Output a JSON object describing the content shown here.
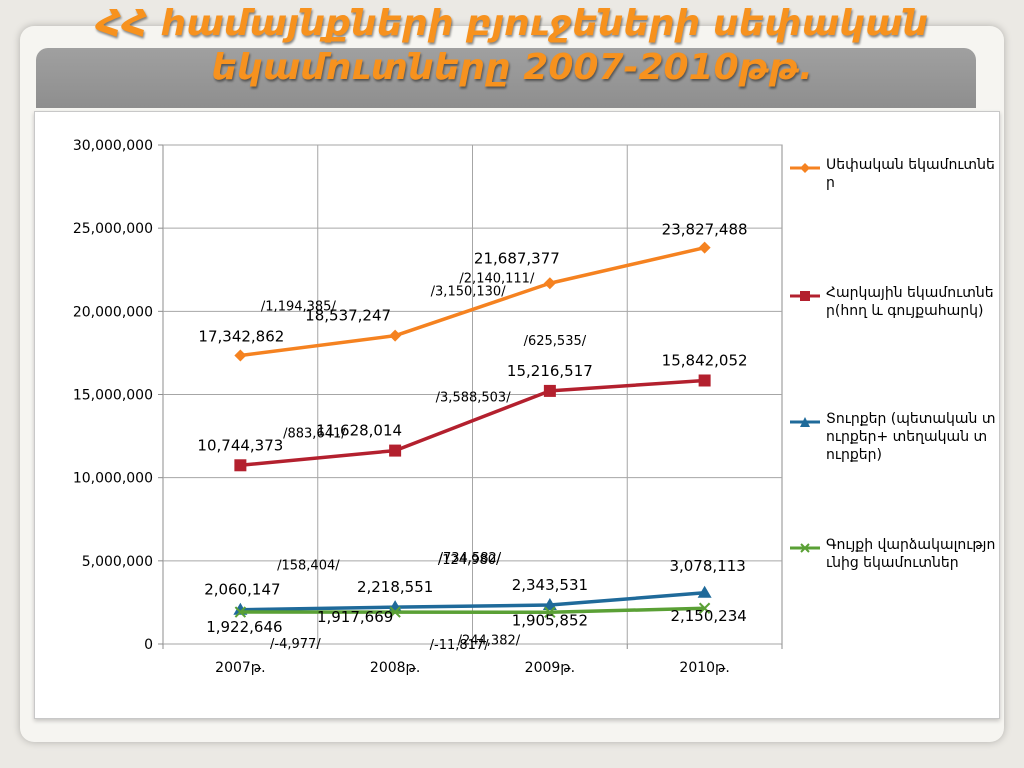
{
  "slide": {
    "title_line1": "ՀՀ համայնքների բյուջեների սեփական",
    "title_line2": "եկամուտները 2007-2010թթ."
  },
  "colors": {
    "title": "#f7921e",
    "own_revenues": "#f58220",
    "land_property": "#b3202e",
    "fees": "#1f6a9a",
    "property_lease": "#5aa035"
  },
  "chart_data": {
    "type": "line",
    "categories": [
      "2007թ.",
      "2008թ.",
      "2009թ.",
      "2010թ."
    ],
    "ylim": [
      0,
      30000000
    ],
    "yticks": [
      0,
      5000000,
      10000000,
      15000000,
      20000000,
      25000000,
      30000000
    ],
    "ytick_labels": [
      "0",
      "5,000,000",
      "10,000,000",
      "15,000,000",
      "20,000,000",
      "25,000,000",
      "30,000,000"
    ],
    "grid": true,
    "legend_position": "right",
    "series": [
      {
        "name": "Սեփական եկամուտներ",
        "marker": "diamond",
        "values": [
          17342862,
          18537247,
          21687377,
          23827488
        ],
        "labels": [
          "17,342,862",
          "18,537,247",
          "21,687,377",
          "23,827,488"
        ],
        "changes": [
          "/1,194,385/",
          "/3,150,130/",
          "/2,140,111/"
        ]
      },
      {
        "name": "Հարկային եկամուտներ(հող և գույքահարկ)",
        "marker": "square",
        "values": [
          10744373,
          11628014,
          15216517,
          15842052
        ],
        "labels": [
          "10,744,373",
          "11,628,014",
          "15,216,517",
          "15,842,052"
        ],
        "changes": [
          "/883,641/",
          "/3,588,503/",
          "/625,535/"
        ]
      },
      {
        "name": "Տուրքեր (պետական տուրքեր+ տեղական տուրքեր)",
        "marker": "triangle",
        "values": [
          2060147,
          2218551,
          2343531,
          3078113
        ],
        "labels": [
          "2,060,147",
          "2,218,551",
          "2,343,531",
          "3,078,113"
        ],
        "changes": [
          "/158,404/",
          "/124,980/",
          "/734,582/"
        ]
      },
      {
        "name": "Գույքի վարձակալությունից եկամուտներ",
        "marker": "x",
        "values": [
          1922646,
          1917669,
          1905852,
          2150234
        ],
        "labels": [
          "1,922,646",
          "1,917,669",
          "1,905,852",
          "2,150,234"
        ],
        "changes": [
          "/-4,977/",
          "/-11,817/",
          "/244,382/"
        ]
      }
    ]
  }
}
